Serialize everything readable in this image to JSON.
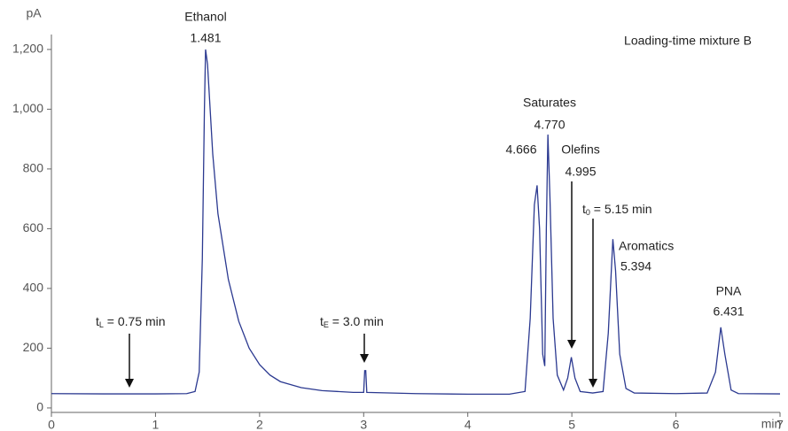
{
  "chart_data": {
    "type": "line",
    "y_label": "pA",
    "x_label": "min",
    "x": [
      0,
      0.5,
      1.0,
      1.3,
      1.38,
      1.42,
      1.45,
      1.47,
      1.481,
      1.5,
      1.55,
      1.6,
      1.7,
      1.8,
      1.9,
      2.0,
      2.1,
      2.2,
      2.4,
      2.6,
      2.9,
      3.0,
      3.01,
      3.02,
      3.03,
      3.5,
      4.0,
      4.4,
      4.55,
      4.6,
      4.64,
      4.666,
      4.69,
      4.72,
      4.74,
      4.755,
      4.77,
      4.79,
      4.82,
      4.86,
      4.92,
      4.96,
      4.995,
      5.03,
      5.08,
      5.2,
      5.3,
      5.35,
      5.394,
      5.42,
      5.46,
      5.52,
      5.6,
      6.0,
      6.3,
      6.38,
      6.431,
      6.47,
      6.53,
      6.6,
      7.0
    ],
    "series": [
      {
        "color": "#2b3990",
        "values": [
          48,
          47,
          47,
          48,
          55,
          120,
          500,
          1000,
          1200,
          1150,
          850,
          650,
          430,
          290,
          200,
          145,
          110,
          88,
          68,
          58,
          52,
          52,
          125,
          125,
          52,
          48,
          46,
          46,
          55,
          300,
          680,
          745,
          600,
          180,
          140,
          600,
          915,
          700,
          300,
          110,
          60,
          100,
          170,
          100,
          55,
          50,
          55,
          250,
          565,
          460,
          180,
          65,
          50,
          48,
          50,
          120,
          270,
          180,
          60,
          48,
          47
        ]
      }
    ],
    "xlim": [
      0,
      7
    ],
    "xticks": [
      0,
      1,
      2,
      3,
      4,
      5,
      6,
      7
    ],
    "ylim": [
      -15,
      1250
    ],
    "yticks": [
      0,
      200,
      400,
      600,
      800,
      {
        "value": 1000,
        "label": "1,000"
      },
      {
        "value": 1200,
        "label": "1,200"
      }
    ],
    "annotations": [
      {
        "text": "Ethanol"
      },
      {
        "text": "1.481"
      },
      {
        "text": "Loading-time mixture B"
      },
      {
        "text": "Saturates"
      },
      {
        "text": "4.770"
      },
      {
        "text": "4.666"
      },
      {
        "text": "Olefins"
      },
      {
        "text": "4.995"
      },
      {
        "text": "Aromatics"
      },
      {
        "text": "5.394"
      },
      {
        "text": "PNA"
      },
      {
        "text": "6.431"
      },
      {
        "text": "t",
        "sub": "L",
        "rest": " = 0.75 min"
      },
      {
        "text": "t",
        "sub": "E",
        "rest": " = 3.0 min"
      },
      {
        "text": "t",
        "sub": "0",
        "rest": " = 5.15 min"
      }
    ]
  }
}
